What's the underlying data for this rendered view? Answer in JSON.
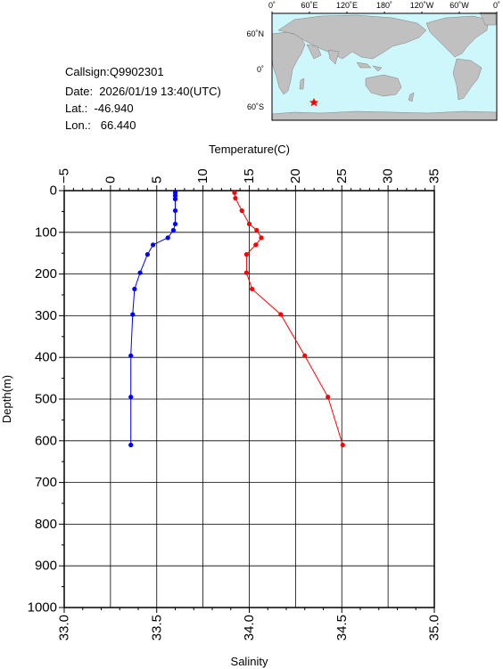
{
  "info": {
    "callsign": "Callsign:Q9902301",
    "date": "Date:  2026/01/19 13:40(UTC)",
    "lat": "Lat.:  -46.940",
    "lon": "Lon.:   66.440"
  },
  "map": {
    "lon_ticks": [
      "0˚",
      "60˚E",
      "120˚E",
      "180˚",
      "120˚W",
      "60˚W",
      "0˚"
    ],
    "lat_ticks": [
      "60˚N",
      "0˚",
      "60˚S"
    ],
    "marker_lat": -46.94,
    "marker_lon": 66.44,
    "colors": {
      "ocean": "#cdf7fb",
      "land": "#c0c0c0",
      "marker": "#ff0000"
    }
  },
  "chart_data": {
    "type": "line",
    "top_axis": {
      "label": "Temperature(C)",
      "range": [
        -5,
        35
      ],
      "ticks": [
        "−5",
        "0",
        "5",
        "10",
        "15",
        "20",
        "25",
        "30",
        "35"
      ]
    },
    "bottom_axis": {
      "label": "Salinity",
      "range": [
        33.0,
        35.0
      ],
      "ticks": [
        "33.0",
        "33.5",
        "34.0",
        "34.5",
        "35.0"
      ]
    },
    "left_axis": {
      "label": "Depth(m)",
      "range": [
        0,
        1000
      ],
      "inverted": true,
      "ticks": [
        "0",
        "100",
        "200",
        "300",
        "400",
        "500",
        "600",
        "700",
        "800",
        "900",
        "1000"
      ]
    },
    "grid": true,
    "series": [
      {
        "axis": "temperature",
        "color": "#ff0000",
        "points": [
          {
            "value": 13.4,
            "depth": 5
          },
          {
            "value": 13.5,
            "depth": 18
          },
          {
            "value": 14.2,
            "depth": 48
          },
          {
            "value": 15.0,
            "depth": 80
          },
          {
            "value": 15.8,
            "depth": 95
          },
          {
            "value": 16.3,
            "depth": 113
          },
          {
            "value": 15.7,
            "depth": 130
          },
          {
            "value": 14.7,
            "depth": 153
          },
          {
            "value": 14.7,
            "depth": 197
          },
          {
            "value": 15.3,
            "depth": 236
          },
          {
            "value": 18.4,
            "depth": 297
          },
          {
            "value": 21.0,
            "depth": 396
          },
          {
            "value": 23.5,
            "depth": 495
          },
          {
            "value": 25.1,
            "depth": 610
          }
        ]
      },
      {
        "axis": "salinity",
        "color": "#0000ff",
        "points": [
          {
            "value": 33.6,
            "depth": 5
          },
          {
            "value": 33.6,
            "depth": 12
          },
          {
            "value": 33.6,
            "depth": 20
          },
          {
            "value": 33.6,
            "depth": 48
          },
          {
            "value": 33.6,
            "depth": 80
          },
          {
            "value": 33.59,
            "depth": 95
          },
          {
            "value": 33.56,
            "depth": 113
          },
          {
            "value": 33.48,
            "depth": 130
          },
          {
            "value": 33.45,
            "depth": 153
          },
          {
            "value": 33.41,
            "depth": 197
          },
          {
            "value": 33.38,
            "depth": 236
          },
          {
            "value": 33.37,
            "depth": 297
          },
          {
            "value": 33.36,
            "depth": 396
          },
          {
            "value": 33.36,
            "depth": 495
          },
          {
            "value": 33.36,
            "depth": 610
          }
        ]
      }
    ]
  }
}
